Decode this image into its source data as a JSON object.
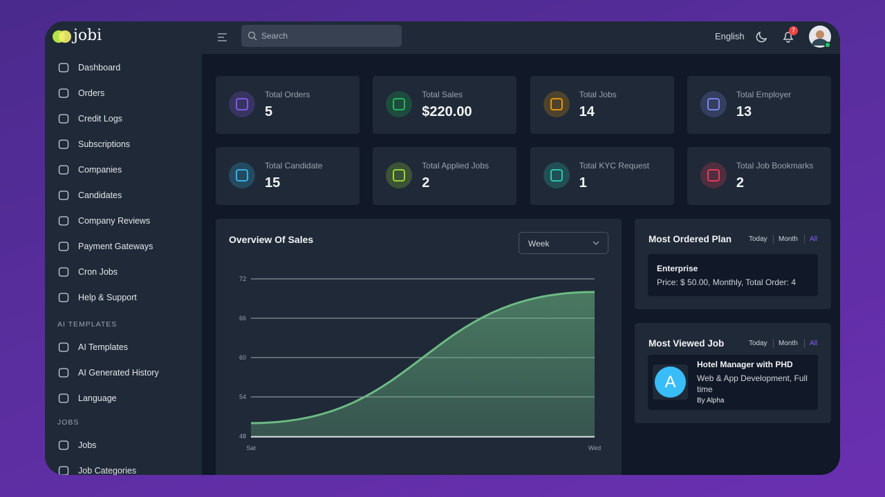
{
  "brand": "jobi",
  "header": {
    "search_placeholder": "Search",
    "language": "English",
    "notification_count": 7
  },
  "sidebar": {
    "menu": [
      "Dashboard",
      "Orders",
      "Credit Logs",
      "Subscriptions",
      "Companies",
      "Candidates",
      "Company Reviews",
      "Payment Gateways",
      "Cron Jobs",
      "Help & Support"
    ],
    "sections": [
      {
        "heading": "AI TEMPLATES",
        "items": [
          "AI Templates",
          "AI Generated History",
          "Language"
        ]
      },
      {
        "heading": "JOBS",
        "items": [
          "Jobs",
          "Job Categories"
        ]
      }
    ]
  },
  "stats": [
    {
      "label": "Total Orders",
      "value": "5"
    },
    {
      "label": "Total Sales",
      "value": "$220.00"
    },
    {
      "label": "Total Jobs",
      "value": "14"
    },
    {
      "label": "Total Employer",
      "value": "13"
    },
    {
      "label": "Total Candidate",
      "value": "15"
    },
    {
      "label": "Total Applied Jobs",
      "value": "2"
    },
    {
      "label": "Total KYC Request",
      "value": "1"
    },
    {
      "label": "Total Job Bookmarks",
      "value": "2"
    }
  ],
  "chart_data": {
    "type": "area",
    "title": "Overview Of Sales",
    "period": "Week",
    "categories": [
      "Sat",
      "Wed"
    ],
    "series": [
      {
        "name": "Sales",
        "color": "#6dbb85",
        "values": [
          50,
          70
        ]
      }
    ],
    "ylim": [
      48,
      72
    ],
    "yticks": [
      48,
      54,
      60,
      66,
      72
    ],
    "grid": true
  },
  "most_ordered_plan": {
    "title": "Most Ordered Plan",
    "filters": [
      "Today",
      "Month",
      "All"
    ],
    "active_filter": 2,
    "plan": {
      "name": "Enterprise",
      "details": "Price: $ 50.00, Monthly, Total Order: 4"
    }
  },
  "most_viewed_job": {
    "title": "Most Viewed Job",
    "filters": [
      "Today",
      "Month",
      "All"
    ],
    "active_filter": 2,
    "job": {
      "avatar": "A",
      "title": "Hotel Manager with PHD",
      "category": "Web & App Development, Full time",
      "company": "By Alpha"
    }
  }
}
